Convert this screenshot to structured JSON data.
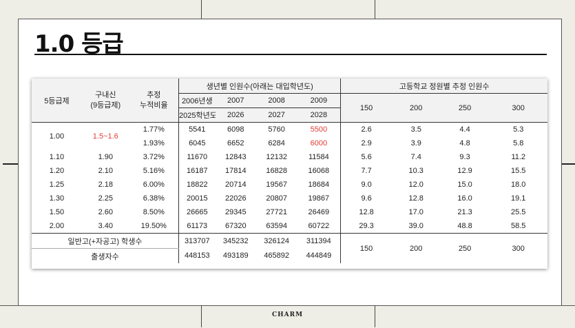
{
  "title": "1.0 등급",
  "footer": "CHARM",
  "table": {
    "col_grade": "5등급제",
    "col_old": "구내신\n(9등급제)",
    "col_cum": "추정\n누적비율",
    "group_birth": "생년별 인원수(아래는 대입학년도)",
    "group_school": "고등학교 정원별 추정 인원수",
    "birth_years": [
      "2006년생",
      "2007",
      "2008",
      "2009"
    ],
    "entry_years": [
      "2025학년도",
      "2026",
      "2027",
      "2028"
    ],
    "capacities": [
      "150",
      "200",
      "250",
      "300"
    ],
    "rows": [
      {
        "grade": "1.00",
        "old": "1.5~1.6",
        "cum": "1.77%",
        "counts": [
          "5541",
          "6098",
          "5760",
          "5500"
        ],
        "est": [
          "2.6",
          "3.5",
          "4.4",
          "5.3"
        ]
      },
      {
        "grade": "",
        "old": "",
        "cum": "1.93%",
        "counts": [
          "6045",
          "6652",
          "6284",
          "6000"
        ],
        "est": [
          "2.9",
          "3.9",
          "4.8",
          "5.8"
        ]
      },
      {
        "grade": "1.10",
        "old": "1.90",
        "cum": "3.72%",
        "counts": [
          "11670",
          "12843",
          "12132",
          "11584"
        ],
        "est": [
          "5.6",
          "7.4",
          "9.3",
          "11.2"
        ]
      },
      {
        "grade": "1.20",
        "old": "2.10",
        "cum": "5.16%",
        "counts": [
          "16187",
          "17814",
          "16828",
          "16068"
        ],
        "est": [
          "7.7",
          "10.3",
          "12.9",
          "15.5"
        ]
      },
      {
        "grade": "1.25",
        "old": "2.18",
        "cum": "6.00%",
        "counts": [
          "18822",
          "20714",
          "19567",
          "18684"
        ],
        "est": [
          "9.0",
          "12.0",
          "15.0",
          "18.0"
        ]
      },
      {
        "grade": "1.30",
        "old": "2.25",
        "cum": "6.38%",
        "counts": [
          "20015",
          "22026",
          "20807",
          "19867"
        ],
        "est": [
          "9.6",
          "12.8",
          "16.0",
          "19.1"
        ]
      },
      {
        "grade": "1.50",
        "old": "2.60",
        "cum": "8.50%",
        "counts": [
          "26665",
          "29345",
          "27721",
          "26469"
        ],
        "est": [
          "12.8",
          "17.0",
          "21.3",
          "25.5"
        ]
      },
      {
        "grade": "2.00",
        "old": "3.40",
        "cum": "19.50%",
        "counts": [
          "61173",
          "67320",
          "63594",
          "60722"
        ],
        "est": [
          "29.3",
          "39.0",
          "48.8",
          "58.5"
        ]
      }
    ],
    "students_label": "일반고(+자공고) 학생수",
    "students": [
      "313707",
      "345232",
      "326124",
      "311394"
    ],
    "births_label": "출생자수",
    "births": [
      "448153",
      "493189",
      "465892",
      "444849"
    ],
    "capacity_totals": [
      "150",
      "200",
      "250",
      "300"
    ]
  },
  "colors": {
    "highlight": "#e03c31"
  }
}
